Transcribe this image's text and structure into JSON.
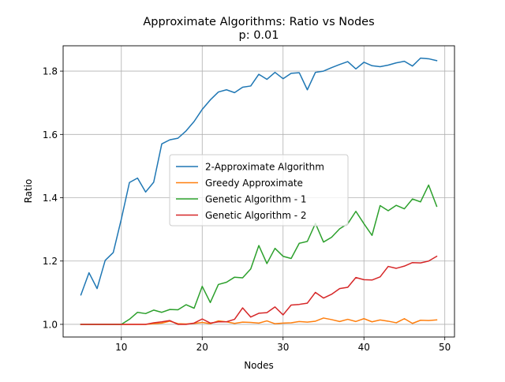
{
  "chart_data": {
    "type": "line",
    "title": "Approximate Algorithms: Ratio vs Nodes",
    "subtitle": "p: 0.01",
    "xlabel": "Nodes",
    "ylabel": "Ratio",
    "xlim": [
      2.8,
      51.2
    ],
    "ylim": [
      0.96,
      1.88
    ],
    "xticks": [
      10,
      20,
      30,
      40,
      50
    ],
    "yticks": [
      1.0,
      1.2,
      1.4,
      1.6,
      1.8
    ],
    "ytick_labels": [
      "1.0",
      "1.2",
      "1.4",
      "1.6",
      "1.8"
    ],
    "grid": true,
    "legend_position": "center",
    "x": [
      5,
      6,
      7,
      8,
      9,
      10,
      11,
      12,
      13,
      14,
      15,
      16,
      17,
      18,
      19,
      20,
      21,
      22,
      23,
      24,
      25,
      26,
      27,
      28,
      29,
      30,
      31,
      32,
      33,
      34,
      35,
      36,
      37,
      38,
      39,
      40,
      41,
      42,
      43,
      44,
      45,
      46,
      47,
      48,
      49
    ],
    "series": [
      {
        "name": "2-Approximate Algorithm",
        "color": "#1f77b4",
        "values": [
          1.093,
          1.163,
          1.113,
          1.202,
          1.227,
          1.333,
          1.448,
          1.462,
          1.418,
          1.449,
          1.57,
          1.583,
          1.588,
          1.611,
          1.641,
          1.679,
          1.709,
          1.734,
          1.741,
          1.732,
          1.749,
          1.753,
          1.79,
          1.774,
          1.796,
          1.776,
          1.793,
          1.795,
          1.741,
          1.796,
          1.8,
          1.811,
          1.821,
          1.83,
          1.807,
          1.828,
          1.817,
          1.814,
          1.819,
          1.826,
          1.831,
          1.816,
          1.841,
          1.839,
          1.833
        ]
      },
      {
        "name": "Greedy Approximate",
        "color": "#ff7f0e",
        "values": [
          1.0,
          1.0,
          1.0,
          1.0,
          1.0,
          1.0,
          1.0,
          1.0,
          1.0,
          1.002,
          1.004,
          1.01,
          1.002,
          1.001,
          1.003,
          1.006,
          1.002,
          1.011,
          1.008,
          1.003,
          1.007,
          1.006,
          1.004,
          1.011,
          1.002,
          1.004,
          1.005,
          1.009,
          1.007,
          1.01,
          1.02,
          1.015,
          1.009,
          1.016,
          1.009,
          1.018,
          1.008,
          1.014,
          1.01,
          1.005,
          1.018,
          1.003,
          1.013,
          1.012,
          1.014
        ]
      },
      {
        "name": "Genetic Algorithm - 1",
        "color": "#2ca02c",
        "values": [
          1.0,
          1.0,
          1.0,
          1.0,
          1.0,
          1.0,
          1.016,
          1.038,
          1.034,
          1.045,
          1.038,
          1.047,
          1.046,
          1.062,
          1.051,
          1.12,
          1.069,
          1.126,
          1.133,
          1.149,
          1.147,
          1.175,
          1.249,
          1.192,
          1.24,
          1.215,
          1.208,
          1.256,
          1.262,
          1.319,
          1.26,
          1.275,
          1.302,
          1.318,
          1.357,
          1.318,
          1.281,
          1.375,
          1.359,
          1.376,
          1.365,
          1.396,
          1.387,
          1.44,
          1.373
        ]
      },
      {
        "name": "Genetic Algorithm - 2",
        "color": "#d62728",
        "values": [
          1.0,
          1.0,
          1.0,
          1.0,
          1.0,
          1.0,
          1.0,
          1.0,
          1.0,
          1.005,
          1.008,
          1.012,
          1.0,
          1.0,
          1.004,
          1.017,
          1.004,
          1.008,
          1.008,
          1.016,
          1.052,
          1.023,
          1.035,
          1.037,
          1.055,
          1.03,
          1.061,
          1.063,
          1.067,
          1.101,
          1.083,
          1.095,
          1.113,
          1.117,
          1.148,
          1.141,
          1.14,
          1.15,
          1.183,
          1.177,
          1.184,
          1.195,
          1.194,
          1.2,
          1.215
        ]
      }
    ]
  }
}
